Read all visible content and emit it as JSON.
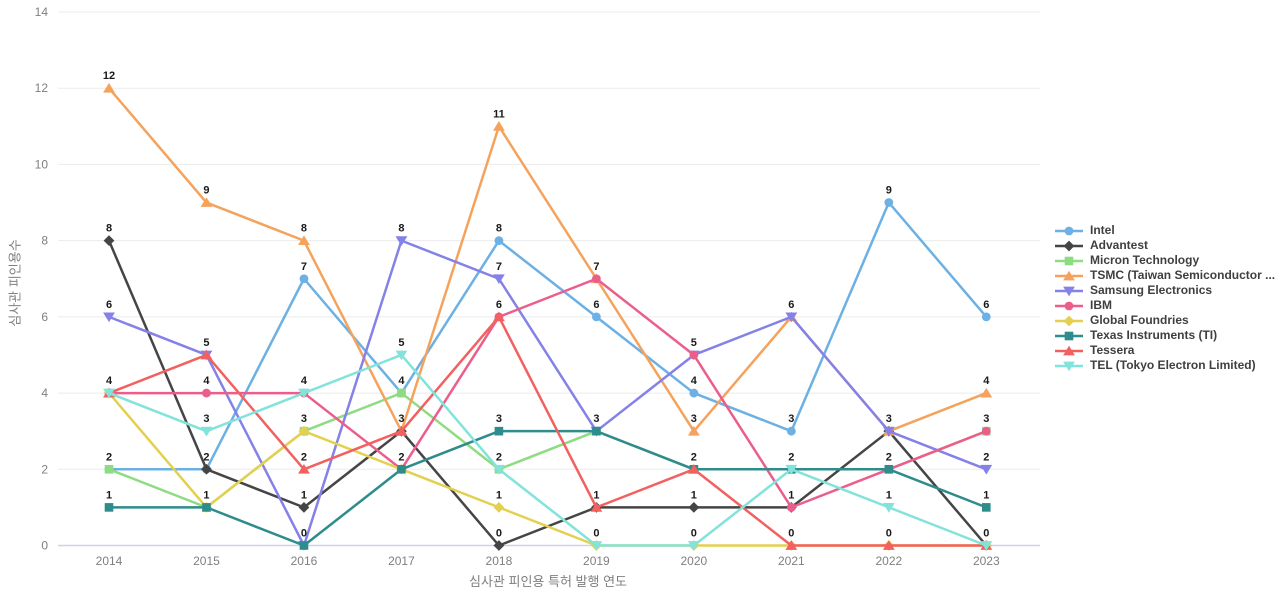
{
  "chart_data": {
    "type": "line",
    "title": "",
    "xlabel": "심사관 피인용 특허 발행 연도",
    "ylabel": "심사관 피인용수",
    "x": [
      2014,
      2015,
      2016,
      2017,
      2018,
      2019,
      2020,
      2021,
      2022,
      2023
    ],
    "yticks": [
      0,
      2,
      4,
      6,
      8,
      10,
      12,
      14
    ],
    "ylim": [
      0,
      14
    ],
    "grid": true,
    "legend_position": "right",
    "colors": {
      "grid": "#ebebeb",
      "baseline": "#c9d4e8",
      "tick_label": "#7f7f7f",
      "axis_title": "#7f7f7f",
      "value_label": "#1a1a1a",
      "legend_text": "#3f3f3f"
    },
    "series": [
      {
        "name": "Intel",
        "color": "#6cb0e4",
        "marker": "circle",
        "values": [
          2,
          2,
          7,
          4,
          8,
          6,
          4,
          3,
          9,
          6
        ]
      },
      {
        "name": "Advantest",
        "color": "#454545",
        "marker": "diamond",
        "values": [
          8,
          2,
          1,
          3,
          0,
          1,
          1,
          1,
          3,
          0
        ]
      },
      {
        "name": "Micron Technology",
        "color": "#8edc82",
        "marker": "square",
        "values": [
          2,
          1,
          3,
          4,
          2,
          3,
          2,
          2,
          2,
          3
        ]
      },
      {
        "name": "TSMC (Taiwan Semiconductor ...",
        "color": "#f5a35c",
        "marker": "triangle-up",
        "values": [
          12,
          9,
          8,
          3,
          11,
          7,
          3,
          6,
          3,
          4
        ]
      },
      {
        "name": "Samsung Electronics",
        "color": "#8481e8",
        "marker": "triangle-down",
        "values": [
          6,
          5,
          0,
          8,
          7,
          3,
          5,
          6,
          3,
          2
        ]
      },
      {
        "name": "IBM",
        "color": "#eb5e8c",
        "marker": "circle",
        "values": [
          4,
          4,
          4,
          2,
          6,
          7,
          5,
          1,
          2,
          3
        ]
      },
      {
        "name": "Global Foundries",
        "color": "#e4d04f",
        "marker": "diamond",
        "values": [
          4,
          1,
          3,
          2,
          1,
          0,
          0,
          0,
          0,
          0
        ]
      },
      {
        "name": "Texas Instruments (TI)",
        "color": "#2f8c8c",
        "marker": "square",
        "values": [
          1,
          1,
          0,
          2,
          3,
          3,
          2,
          2,
          2,
          1
        ]
      },
      {
        "name": "Tessera",
        "color": "#f26060",
        "marker": "triangle-up",
        "values": [
          4,
          5,
          2,
          3,
          6,
          1,
          2,
          0,
          0,
          0
        ]
      },
      {
        "name": "TEL (Tokyo Electron Limited)",
        "color": "#82e3db",
        "marker": "triangle-down",
        "values": [
          4,
          3,
          4,
          5,
          2,
          0,
          0,
          2,
          1,
          0
        ]
      }
    ]
  }
}
